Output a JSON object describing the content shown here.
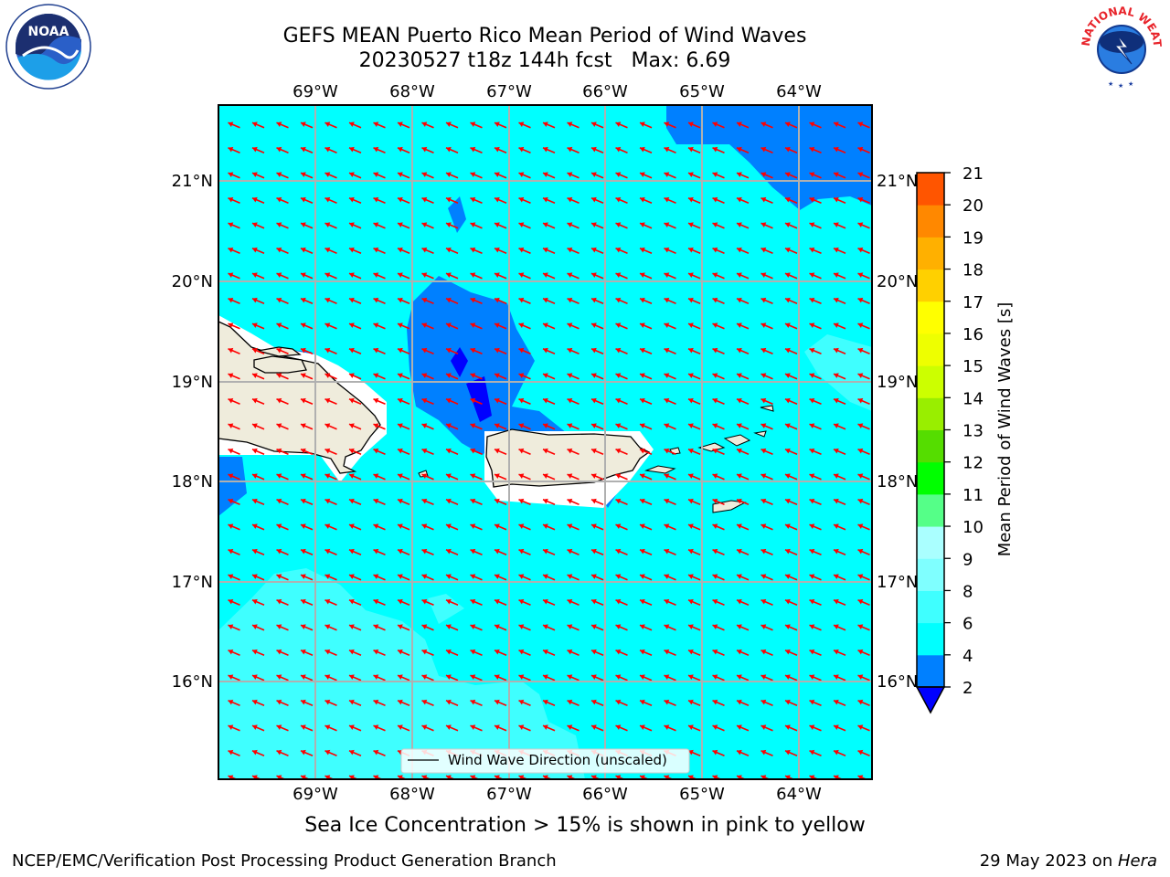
{
  "title": {
    "line1": "GEFS MEAN Puerto Rico Mean Period of Wind Waves",
    "line2": "20230527 t18z 144h fcst   Max: 6.69"
  },
  "subtitle": "Sea Ice Concentration > 15% is shown in pink to yellow",
  "footer": {
    "left": "NCEP/EMC/Verification Post Processing Product Generation Branch",
    "right_prefix": "29 May 2023 on ",
    "right_host": "Hera"
  },
  "legend": {
    "label": "Wind Wave Direction (unscaled)"
  },
  "colorbar": {
    "label": "Mean Period of Wind Waves [s]",
    "ticks": [
      "2",
      "4",
      "6",
      "8",
      "9",
      "10",
      "11",
      "12",
      "13",
      "14",
      "15",
      "16",
      "17",
      "18",
      "19",
      "20",
      "21"
    ],
    "colors": [
      "#0080ff",
      "#00ffff",
      "#3fffff",
      "#7fffff",
      "#aaffff",
      "#55ff88",
      "#00ff00",
      "#55dd00",
      "#99ee00",
      "#ccff00",
      "#eeff00",
      "#ffff00",
      "#ffd000",
      "#ffb000",
      "#ff8800",
      "#ff5500",
      "#ff2200",
      "#ff0000"
    ],
    "under_color": "#0000ff"
  },
  "map": {
    "lon_labels": [
      "69°W",
      "68°W",
      "67°W",
      "66°W",
      "65°W",
      "64°W"
    ],
    "lat_labels": [
      "21°N",
      "20°N",
      "19°N",
      "18°N",
      "17°N",
      "16°N"
    ],
    "arrow_color": "#ff0000",
    "land_color": "#efecdc"
  },
  "logos": {
    "noaa": "NOAA",
    "nws": "NATIONAL WEATHER SERVICE"
  }
}
